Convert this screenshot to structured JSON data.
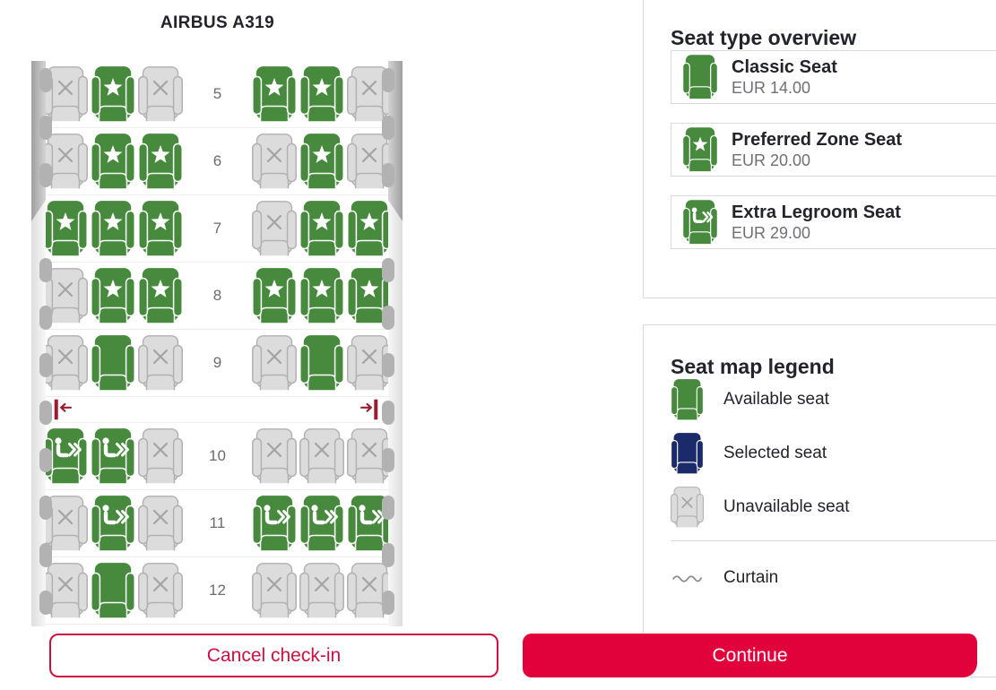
{
  "palette": {
    "seat_green": "#478A3E",
    "seat_navy": "#1B2A68",
    "seat_gray": "#DCDCDC",
    "seat_gray_line": "#B1B1B1",
    "seat_x": "#A4A4A4",
    "accent_red": "#E1013B",
    "cancel_red": "#CE0F3F",
    "curtain_red": "#9B1B31"
  },
  "seatmap": {
    "title": "AIRBUS A319",
    "rows": [
      {
        "number": "5",
        "left": [
          "unavailable",
          "preferred",
          "unavailable"
        ],
        "right": [
          "preferred",
          "preferred",
          "unavailable"
        ]
      },
      {
        "number": "6",
        "left": [
          "unavailable",
          "preferred",
          "preferred"
        ],
        "right": [
          "unavailable",
          "preferred",
          "unavailable"
        ]
      },
      {
        "number": "7",
        "left": [
          "preferred",
          "preferred",
          "preferred"
        ],
        "right": [
          "unavailable",
          "preferred",
          "preferred"
        ]
      },
      {
        "number": "8",
        "left": [
          "unavailable",
          "preferred",
          "preferred"
        ],
        "right": [
          "preferred",
          "preferred",
          "preferred"
        ]
      },
      {
        "number": "9",
        "left": [
          "unavailable",
          "classic",
          "unavailable"
        ],
        "right": [
          "unavailable",
          "classic",
          "unavailable"
        ]
      },
      {
        "curtain": true
      },
      {
        "number": "10",
        "left": [
          "legroom",
          "legroom",
          "unavailable"
        ],
        "right": [
          "unavailable",
          "unavailable",
          "unavailable"
        ]
      },
      {
        "number": "11",
        "left": [
          "unavailable",
          "legroom",
          "unavailable"
        ],
        "right": [
          "legroom",
          "legroom",
          "legroom"
        ]
      },
      {
        "number": "12",
        "left": [
          "unavailable",
          "classic",
          "unavailable"
        ],
        "right": [
          "unavailable",
          "unavailable",
          "unavailable"
        ]
      }
    ]
  },
  "overview": {
    "title": "Seat type overview",
    "items": [
      {
        "icon": "classic",
        "name": "Classic Seat",
        "price": "EUR 14.00"
      },
      {
        "icon": "preferred",
        "name": "Preferred Zone Seat",
        "price": "EUR 20.00"
      },
      {
        "icon": "legroom",
        "name": "Extra Legroom Seat",
        "price": "EUR 29.00"
      }
    ]
  },
  "legend": {
    "title": "Seat map legend",
    "items": [
      {
        "icon": "classic",
        "label": "Available seat"
      },
      {
        "icon": "selected",
        "label": "Selected seat"
      },
      {
        "icon": "unavailable",
        "label": "Unavailable seat"
      }
    ],
    "curtain_label": "Curtain"
  },
  "footer": {
    "cancel_label": "Cancel check-in",
    "continue_label": "Continue"
  }
}
